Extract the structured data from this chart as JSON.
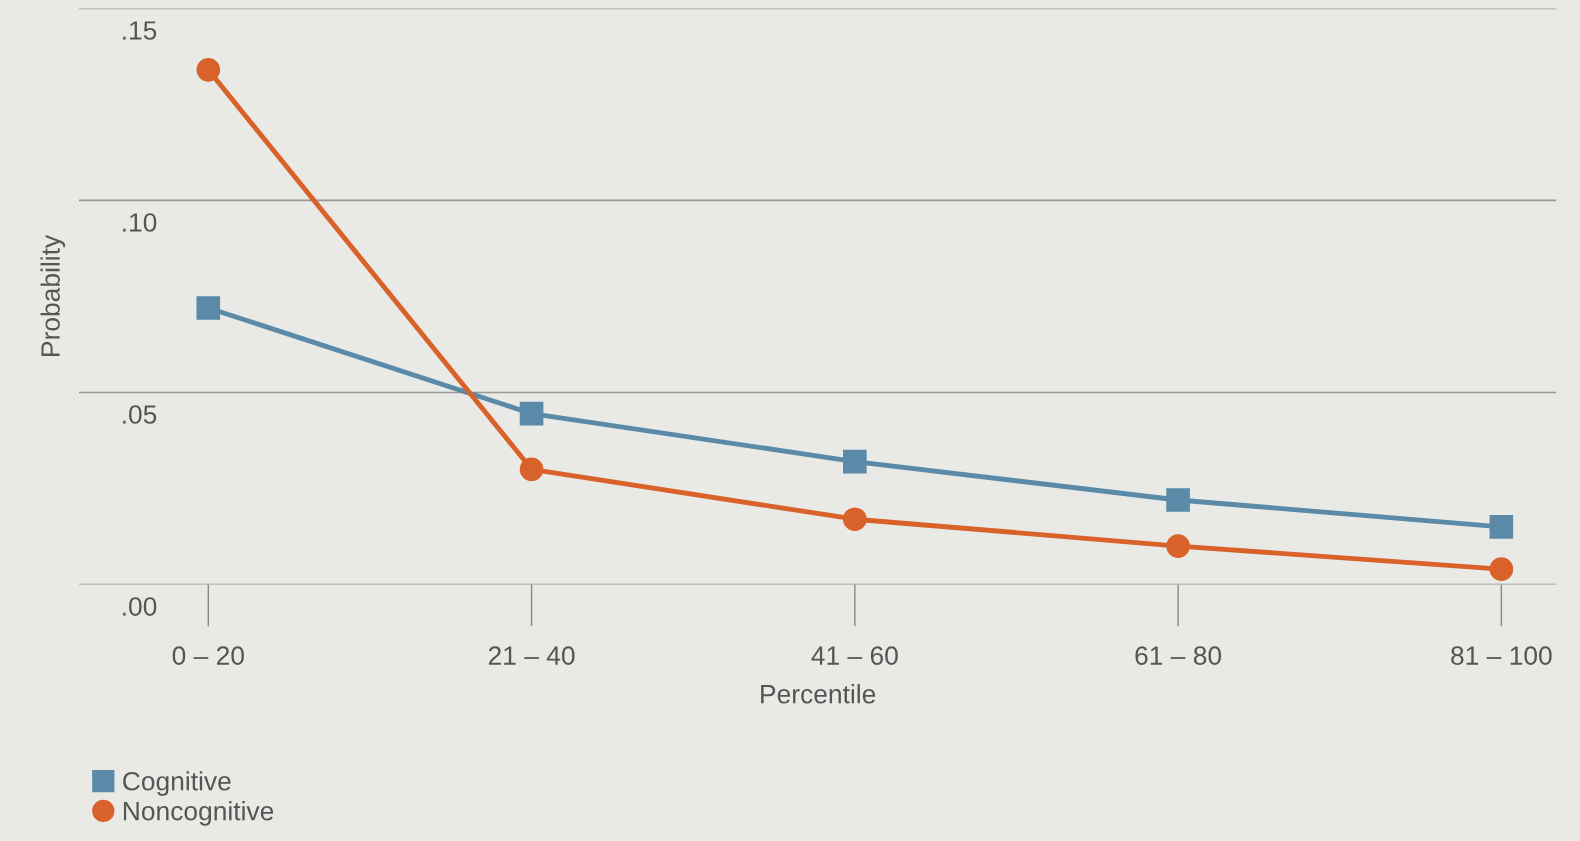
{
  "chart_data": {
    "type": "line",
    "xlabel": "Percentile",
    "ylabel": "Probability",
    "categories": [
      "0 – 20",
      "21 – 40",
      "41 – 60",
      "61 – 80",
      "81 – 100"
    ],
    "series": [
      {
        "name": "Cognitive",
        "color": "#5b8aa8",
        "marker": "square",
        "values": [
          0.072,
          0.0445,
          0.032,
          0.022,
          0.015
        ]
      },
      {
        "name": "Noncognitive",
        "color": "#d9622b",
        "marker": "circle",
        "values": [
          0.134,
          0.03,
          0.017,
          0.01,
          0.004
        ]
      }
    ],
    "ylim": [
      0,
      0.15
    ],
    "yticks": [
      {
        "value": 0,
        "label": ".00"
      },
      {
        "value": 0.05,
        "label": ".05"
      },
      {
        "value": 0.1,
        "label": ".10"
      },
      {
        "value": 0.15,
        "label": ".15"
      }
    ],
    "grid": "y",
    "legend": "bottom left",
    "line_style": "solid"
  }
}
